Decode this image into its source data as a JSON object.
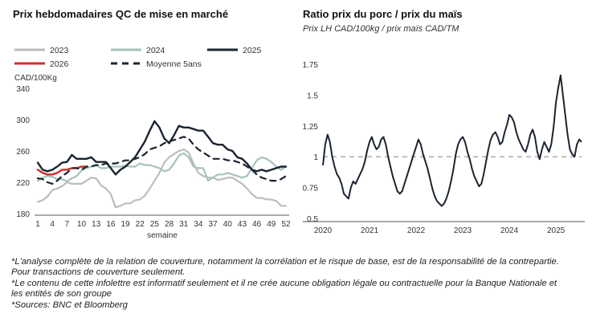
{
  "left_chart": {
    "title": "Prix hebdomadaires QC de mise en marché",
    "ylabel": "CAD/100Kg",
    "xlabel": "semaine"
  },
  "right_chart": {
    "title": "Ratio prix du porc / prix du maïs",
    "subtitle": "Prix LH CAD/100kg / prix maïs CAD/TM"
  },
  "notes": [
    "*L'analyse complète de la relation de couverture, notamment la corrélation et le risque de base, est de la responsabilité de la contrepartie. Pour transactions de couverture seulement.",
    "*Le contenu de cette infolettre est informatif seulement et il ne crée aucune obligation légale ou contractuelle pour la Banque Nationale et les entités de son groupe",
    "*Sources: BNC et Bloomberg"
  ],
  "chart_data": [
    {
      "type": "line",
      "title": "Prix hebdomadaires QC de mise en marché",
      "xlabel": "semaine",
      "ylabel": "CAD/100Kg",
      "ylim": [
        180,
        340
      ],
      "xlim": [
        1,
        52
      ],
      "x_ticks": [
        1,
        4,
        7,
        10,
        13,
        16,
        19,
        22,
        25,
        28,
        31,
        34,
        37,
        40,
        43,
        46,
        49,
        52
      ],
      "y_ticks": [
        180,
        220,
        260,
        300,
        340
      ],
      "grid": false,
      "legend_position": "top",
      "x": [
        1,
        2,
        3,
        4,
        5,
        6,
        7,
        8,
        9,
        10,
        11,
        12,
        13,
        14,
        15,
        16,
        17,
        18,
        19,
        20,
        21,
        22,
        23,
        24,
        25,
        26,
        27,
        28,
        29,
        30,
        31,
        32,
        33,
        34,
        35,
        36,
        37,
        38,
        39,
        40,
        41,
        42,
        43,
        44,
        45,
        46,
        47,
        48,
        49,
        50,
        51,
        52
      ],
      "series": [
        {
          "name": "2023",
          "color": "#bdbdbd",
          "dash": "solid",
          "width": 2.2,
          "values": [
            195,
            197,
            202,
            210,
            212,
            215,
            220,
            218,
            218,
            218,
            222,
            226,
            225,
            216,
            212,
            205,
            188,
            190,
            193,
            193,
            197,
            198,
            203,
            212,
            222,
            232,
            245,
            252,
            256,
            260,
            262,
            258,
            244,
            232,
            228,
            226,
            226,
            223,
            224,
            226,
            226,
            222,
            218,
            212,
            205,
            200,
            200,
            198,
            198,
            196,
            190,
            190
          ]
        },
        {
          "name": "2024",
          "color": "#a6c4b7",
          "dash": "solid",
          "width": 2.2,
          "values": [
            222,
            226,
            228,
            227,
            224,
            224,
            221,
            225,
            228,
            235,
            238,
            240,
            242,
            238,
            238,
            240,
            240,
            240,
            241,
            240,
            240,
            244,
            242,
            242,
            240,
            238,
            234,
            236,
            244,
            254,
            257,
            252,
            240,
            238,
            238,
            222,
            226,
            230,
            230,
            232,
            230,
            228,
            226,
            228,
            238,
            248,
            252,
            250,
            246,
            240,
            236,
            240
          ]
        },
        {
          "name": "2025",
          "color": "#1b2430",
          "dash": "solid",
          "width": 2.4,
          "values": [
            245,
            236,
            234,
            236,
            240,
            245,
            246,
            255,
            250,
            250,
            250,
            252,
            246,
            246,
            246,
            238,
            230,
            236,
            240,
            246,
            252,
            262,
            272,
            286,
            298,
            290,
            276,
            270,
            280,
            292,
            290,
            290,
            288,
            286,
            286,
            278,
            270,
            268,
            268,
            262,
            260,
            252,
            250,
            244,
            236,
            234,
            236,
            234,
            236,
            238,
            240,
            240
          ]
        },
        {
          "name": "2026",
          "color": "#d62c2c",
          "dash": "solid",
          "width": 2.4,
          "values": [
            236,
            232,
            230,
            230,
            232,
            236,
            236,
            238,
            238,
            240,
            240,
            null,
            null,
            null,
            null,
            null,
            null,
            null,
            null,
            null,
            null,
            null,
            null,
            null,
            null,
            null,
            null,
            null,
            null,
            null,
            null,
            null,
            null,
            null,
            null,
            null,
            null,
            null,
            null,
            null,
            null,
            null,
            null,
            null,
            null,
            null,
            null,
            null,
            null,
            null,
            null,
            null
          ]
        },
        {
          "name": "Moyenne 5ans",
          "color": "#1b2430",
          "dash": "dashed",
          "width": 2.2,
          "values": [
            225,
            224,
            220,
            218,
            222,
            228,
            232,
            238,
            238,
            236,
            240,
            240,
            242,
            242,
            244,
            244,
            244,
            246,
            248,
            248,
            250,
            252,
            256,
            262,
            264,
            266,
            270,
            272,
            274,
            276,
            278,
            276,
            268,
            262,
            258,
            254,
            250,
            250,
            250,
            248,
            248,
            246,
            244,
            240,
            236,
            230,
            226,
            224,
            222,
            222,
            224,
            228
          ]
        }
      ]
    },
    {
      "type": "line",
      "title": "Ratio prix du porc / prix du maïs",
      "subtitle": "Prix LH CAD/100kg / prix maïs CAD/TM",
      "ylim": [
        0.5,
        1.75
      ],
      "y_ticks": [
        0.5,
        0.75,
        1,
        1.25,
        1.5,
        1.75
      ],
      "x_tick_labels": [
        "2020",
        "2021",
        "2022",
        "2023",
        "2024",
        "2025"
      ],
      "x_ticks": [
        2020,
        2021,
        2022,
        2023,
        2024,
        2025
      ],
      "xlim": [
        2020.0,
        2025.55
      ],
      "grid": false,
      "reference_line": {
        "y": 1.0,
        "style": "dashed",
        "color": "#bdbdbd"
      },
      "series": [
        {
          "color": "#1b2430",
          "width": 2,
          "x": [
            2020.0,
            2020.05,
            2020.1,
            2020.15,
            2020.2,
            2020.25,
            2020.3,
            2020.35,
            2020.4,
            2020.45,
            2020.5,
            2020.55,
            2020.6,
            2020.65,
            2020.7,
            2020.75,
            2020.8,
            2020.85,
            2020.9,
            2020.95,
            2021.0,
            2021.05,
            2021.1,
            2021.15,
            2021.2,
            2021.25,
            2021.3,
            2021.35,
            2021.4,
            2021.45,
            2021.5,
            2021.55,
            2021.6,
            2021.65,
            2021.7,
            2021.75,
            2021.8,
            2021.85,
            2021.9,
            2021.95,
            2022.0,
            2022.05,
            2022.1,
            2022.15,
            2022.2,
            2022.25,
            2022.3,
            2022.35,
            2022.4,
            2022.45,
            2022.5,
            2022.55,
            2022.6,
            2022.65,
            2022.7,
            2022.75,
            2022.8,
            2022.85,
            2022.9,
            2022.95,
            2023.0,
            2023.05,
            2023.1,
            2023.15,
            2023.2,
            2023.25,
            2023.3,
            2023.35,
            2023.4,
            2023.45,
            2023.5,
            2023.55,
            2023.6,
            2023.65,
            2023.7,
            2023.75,
            2023.8,
            2023.85,
            2023.9,
            2023.95,
            2024.0,
            2024.05,
            2024.1,
            2024.15,
            2024.2,
            2024.25,
            2024.3,
            2024.35,
            2024.4,
            2024.45,
            2024.5,
            2024.55,
            2024.6,
            2024.65,
            2024.7,
            2024.75,
            2024.8,
            2024.85,
            2024.9,
            2024.95,
            2025.0,
            2025.05,
            2025.1,
            2025.15,
            2025.2,
            2025.25,
            2025.3,
            2025.35,
            2025.4,
            2025.45,
            2025.5,
            2025.55
          ],
          "values": [
            0.93,
            1.1,
            1.18,
            1.12,
            1.0,
            0.92,
            0.86,
            0.83,
            0.78,
            0.7,
            0.68,
            0.66,
            0.75,
            0.8,
            0.78,
            0.82,
            0.86,
            0.9,
            0.96,
            1.05,
            1.12,
            1.16,
            1.1,
            1.06,
            1.08,
            1.14,
            1.16,
            1.1,
            1.0,
            0.92,
            0.84,
            0.78,
            0.72,
            0.7,
            0.72,
            0.78,
            0.84,
            0.9,
            0.96,
            1.02,
            1.08,
            1.14,
            1.1,
            1.02,
            0.96,
            0.9,
            0.82,
            0.74,
            0.68,
            0.64,
            0.62,
            0.6,
            0.62,
            0.66,
            0.72,
            0.8,
            0.9,
            1.02,
            1.1,
            1.14,
            1.16,
            1.12,
            1.04,
            0.98,
            0.9,
            0.84,
            0.8,
            0.76,
            0.78,
            0.86,
            0.96,
            1.06,
            1.14,
            1.18,
            1.2,
            1.16,
            1.1,
            1.12,
            1.2,
            1.26,
            1.34,
            1.32,
            1.28,
            1.2,
            1.14,
            1.1,
            1.06,
            1.04,
            1.1,
            1.18,
            1.22,
            1.16,
            1.04,
            0.98,
            1.06,
            1.12,
            1.08,
            1.04,
            1.1,
            1.24,
            1.44,
            1.56,
            1.66,
            1.5,
            1.34,
            1.18,
            1.06,
            1.02,
            1.0,
            1.1,
            1.14,
            1.12
          ]
        }
      ]
    }
  ]
}
